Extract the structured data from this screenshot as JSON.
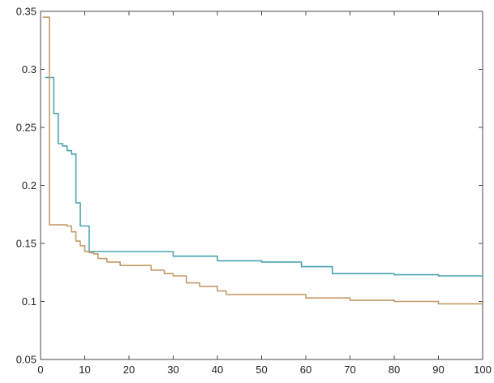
{
  "chart_data": {
    "type": "line",
    "title": "",
    "xlabel": "",
    "ylabel": "",
    "xlim": [
      0,
      100
    ],
    "ylim": [
      0.05,
      0.35
    ],
    "grid": false,
    "x_ticks": [
      0,
      10,
      20,
      30,
      40,
      50,
      60,
      70,
      80,
      90,
      100
    ],
    "y_ticks": [
      0.05,
      0.1,
      0.15,
      0.2,
      0.25,
      0.3,
      0.35
    ],
    "x_tick_labels": [
      "0",
      "10",
      "20",
      "30",
      "40",
      "50",
      "60",
      "70",
      "80",
      "90",
      "100"
    ],
    "y_tick_labels": [
      "0.05",
      "0.1",
      "0.15",
      "0.2",
      "0.25",
      "0.3",
      "0.35"
    ],
    "series": [
      {
        "color": "#4aa3b0",
        "x": [
          1,
          2,
          3,
          4,
          5,
          6,
          7,
          8,
          9,
          10,
          11,
          24,
          30,
          40,
          50,
          59,
          66,
          70,
          80,
          90,
          100
        ],
        "y": [
          0.293,
          0.293,
          0.262,
          0.236,
          0.234,
          0.23,
          0.227,
          0.185,
          0.165,
          0.165,
          0.143,
          0.143,
          0.139,
          0.135,
          0.134,
          0.13,
          0.124,
          0.124,
          0.123,
          0.122,
          0.121
        ]
      },
      {
        "color": "#c49a68",
        "x": [
          0.5,
          1,
          2,
          3,
          4,
          5,
          6,
          7,
          8,
          9,
          10,
          11,
          12,
          13,
          15,
          18,
          21,
          25,
          28,
          30,
          33,
          36,
          40,
          42,
          50,
          60,
          70,
          80,
          90,
          100
        ],
        "y": [
          0.345,
          0.345,
          0.166,
          0.166,
          0.166,
          0.166,
          0.165,
          0.16,
          0.152,
          0.148,
          0.143,
          0.142,
          0.141,
          0.137,
          0.134,
          0.131,
          0.131,
          0.127,
          0.124,
          0.122,
          0.116,
          0.113,
          0.109,
          0.106,
          0.106,
          0.103,
          0.101,
          0.1,
          0.098,
          0.098
        ]
      }
    ]
  }
}
